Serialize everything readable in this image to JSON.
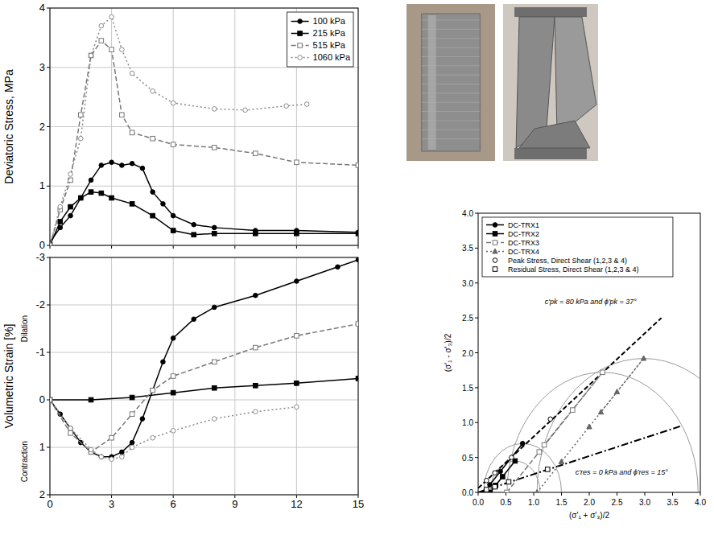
{
  "chart_data": [
    {
      "type": "line",
      "y_label": "Deviatoric Stress, MPa",
      "xlim": [
        0,
        15
      ],
      "xticks": [
        0,
        3,
        6,
        9,
        12,
        15
      ],
      "ylim": [
        0,
        4
      ],
      "yticks": [
        0,
        1,
        2,
        3,
        4
      ],
      "grid": true,
      "legend": "top-right",
      "tick_labels": "y",
      "series": [
        {
          "name": "100 kPa",
          "color": "#000000",
          "marker": "circle",
          "line_style": "solid",
          "x": [
            0,
            0.5,
            1,
            1.5,
            2,
            2.5,
            3,
            3.5,
            4,
            4.5,
            5,
            5.5,
            6,
            7,
            8,
            10,
            12,
            15
          ],
          "values": [
            0.05,
            0.3,
            0.5,
            0.8,
            1.1,
            1.35,
            1.4,
            1.35,
            1.38,
            1.3,
            0.9,
            0.7,
            0.5,
            0.35,
            0.3,
            0.25,
            0.25,
            0.22
          ]
        },
        {
          "name": "215 kPa",
          "color": "#000000",
          "marker": "square",
          "line_style": "solid",
          "x": [
            0,
            0.5,
            1,
            1.5,
            2,
            2.5,
            3,
            4,
            5,
            6,
            7,
            8,
            10,
            12,
            15
          ],
          "values": [
            0,
            0.4,
            0.65,
            0.8,
            0.9,
            0.88,
            0.8,
            0.7,
            0.5,
            0.25,
            0.18,
            0.2,
            0.2,
            0.2,
            0.2
          ]
        },
        {
          "name": "515 kPa",
          "color": "#777777",
          "marker": "open-square",
          "line_style": "dashed",
          "x": [
            0,
            0.5,
            1,
            1.5,
            2,
            2.5,
            3,
            3.5,
            4,
            5,
            6,
            8,
            10,
            12,
            15
          ],
          "values": [
            0,
            0.6,
            1.1,
            2.2,
            3.2,
            3.45,
            3.3,
            2.2,
            1.9,
            1.8,
            1.7,
            1.65,
            1.55,
            1.4,
            1.35
          ]
        },
        {
          "name": "1060 kPa",
          "color": "#888888",
          "marker": "open-circle",
          "line_style": "dotted",
          "x": [
            0,
            0.5,
            1,
            1.5,
            2,
            2.5,
            3,
            3.5,
            4,
            5,
            6,
            8,
            9.5,
            11.5,
            12.5
          ],
          "values": [
            0,
            0.65,
            1.2,
            1.8,
            3.2,
            3.7,
            3.85,
            3.3,
            2.9,
            2.6,
            2.4,
            2.3,
            2.28,
            2.35,
            2.38
          ]
        }
      ]
    },
    {
      "type": "line",
      "y_label": "Volumetric Strain [%]",
      "annotations": [
        "Dilation",
        "Contraction"
      ],
      "xlim": [
        0,
        15
      ],
      "xticks": [
        0,
        3,
        6,
        9,
        12,
        15
      ],
      "ylim": [
        2,
        -3
      ],
      "yticks": [
        2,
        1,
        0,
        -1,
        -2,
        -3
      ],
      "grid": true,
      "series": [
        {
          "name": "100 kPa",
          "color": "#000000",
          "marker": "circle",
          "line_style": "solid",
          "x": [
            0,
            0.5,
            1,
            1.5,
            2,
            2.5,
            3,
            3.5,
            4,
            4.5,
            5,
            5.5,
            6,
            7,
            8,
            10,
            12,
            14,
            15
          ],
          "values": [
            0,
            0.3,
            0.6,
            0.9,
            1.1,
            1.2,
            1.2,
            1.1,
            0.9,
            0.4,
            -0.2,
            -0.8,
            -1.3,
            -1.7,
            -1.95,
            -2.2,
            -2.5,
            -2.8,
            -2.95
          ]
        },
        {
          "name": "215 kPa",
          "color": "#000000",
          "marker": "square",
          "line_style": "solid",
          "x": [
            0,
            2,
            4,
            6,
            8,
            10,
            12,
            15
          ],
          "values": [
            0,
            0,
            -0.05,
            -0.15,
            -0.25,
            -0.3,
            -0.35,
            -0.45
          ]
        },
        {
          "name": "515 kPa",
          "color": "#777777",
          "marker": "open-square",
          "line_style": "dashed",
          "x": [
            0,
            1,
            2,
            3,
            4,
            5,
            6,
            8,
            10,
            12,
            15
          ],
          "values": [
            0,
            0.7,
            1.1,
            0.8,
            0.3,
            -0.2,
            -0.5,
            -0.8,
            -1.1,
            -1.35,
            -1.6
          ]
        },
        {
          "name": "1060 kPa",
          "color": "#888888",
          "marker": "open-circle",
          "line_style": "dotted",
          "x": [
            0,
            1,
            2,
            2.5,
            3,
            3.5,
            4,
            5,
            6,
            8,
            10,
            12
          ],
          "values": [
            0,
            0.6,
            1.05,
            1.2,
            1.25,
            1.2,
            1.0,
            0.8,
            0.65,
            0.4,
            0.25,
            0.15
          ]
        }
      ]
    },
    {
      "type": "line",
      "x_label": "(σ'₁ + σ'₃)/2",
      "y_label": "(σ'₁ - σ'₃)/2",
      "annotations": [
        "c'pk = 80 kPa and ϕ'pk = 37°",
        "c'res = 0 kPa and ϕ'res = 15°"
      ],
      "xlim": [
        0,
        4
      ],
      "xticks": [
        {
          "value": 0,
          "label": "0.0"
        },
        0.5,
        {
          "value": 1,
          "label": "1.0"
        },
        1.5,
        {
          "value": 2,
          "label": "2.0"
        },
        2.5,
        {
          "value": 3,
          "label": "3.0"
        },
        3.5,
        {
          "value": 4,
          "label": "4.0"
        }
      ],
      "ylim": [
        0,
        4
      ],
      "yticks": [
        {
          "value": 0,
          "label": "0.0"
        },
        0.5,
        {
          "value": 1,
          "label": "1.0"
        },
        1.5,
        {
          "value": 2,
          "label": "2.0"
        },
        2.5,
        {
          "value": 3,
          "label": "3.0"
        },
        3.5,
        {
          "value": 4,
          "label": "4.0"
        }
      ],
      "grid": false,
      "legend": "top-left",
      "series": [
        {
          "name": "DC-TRX1",
          "color": "#000000",
          "marker": "circle",
          "line_style": "solid",
          "x": [
            0.1,
            0.4,
            0.8,
            0.21
          ],
          "values": [
            0,
            0.3,
            0.7,
            0.11
          ]
        },
        {
          "name": "DC-TRX2",
          "color": "#000000",
          "marker": "square",
          "line_style": "solid",
          "x": [
            0.215,
            0.44,
            0.665,
            0.315
          ],
          "values": [
            0,
            0.225,
            0.45,
            0.1
          ]
        },
        {
          "name": "DC-TRX3",
          "color": "#777777",
          "marker": "open-square",
          "line_style": "dashed",
          "x": [
            0.515,
            1.1,
            1.7,
            2.24,
            1.19
          ],
          "values": [
            0,
            0.58,
            1.18,
            1.72,
            0.68
          ]
        },
        {
          "name": "DC-TRX4",
          "color": "#666666",
          "marker": "triangle",
          "line_style": "dotted",
          "x": [
            1.06,
            1.5,
            2.0,
            2.5,
            2.98,
            2.21
          ],
          "values": [
            0,
            0.44,
            0.94,
            1.44,
            1.92,
            1.15
          ]
        },
        {
          "name": "Peak Stress, Direct Shear (1,2,3 & 4)",
          "type": "scatter",
          "color": "#000000",
          "marker": "open-circle",
          "x": [
            0.15,
            0.3,
            0.6,
            1.3
          ],
          "values": [
            0.17,
            0.28,
            0.5,
            1.05
          ]
        },
        {
          "name": "Residual Stress, Direct Shear (1,2,3 & 4)",
          "type": "scatter",
          "color": "#000000",
          "marker": "open-square",
          "x": [
            0.15,
            0.3,
            0.55,
            1.25
          ],
          "values": [
            0.04,
            0.08,
            0.15,
            0.33
          ]
        }
      ],
      "envelopes": [
        {
          "x": [
            0,
            3.3
          ],
          "values": [
            0.06,
            2.5
          ],
          "color": "#000000",
          "line_style": "dashed"
        },
        {
          "x": [
            0,
            3.65
          ],
          "values": [
            0,
            0.95
          ],
          "color": "#000000",
          "line_style": "dashdot"
        }
      ],
      "circles": [
        {
          "center": 0.8,
          "radius": 0.7
        },
        {
          "center": 0.665,
          "radius": 0.45
        },
        {
          "center": 2.24,
          "radius": 1.72
        },
        {
          "center": 2.98,
          "radius": 1.92
        }
      ]
    }
  ]
}
